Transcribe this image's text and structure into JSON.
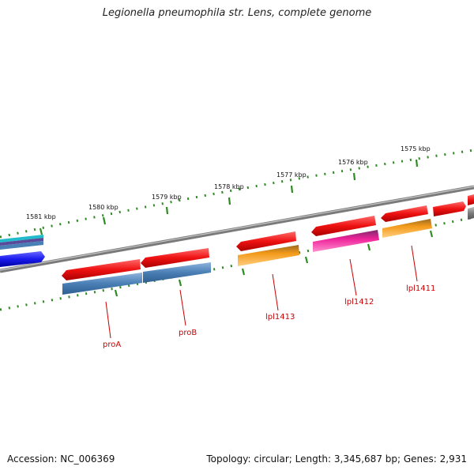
{
  "title": "Legionella pneumophila str. Lens, complete genome",
  "accession": "Accession: NC_006369",
  "stats": "Topology: circular; Length: 3,345,687 bp; Genes: 2,931",
  "colors": {
    "backbone": "#7a7a7a",
    "tick": "#2e8b22",
    "cds_forward": "#ee1111",
    "label": "#cc0000",
    "steelblue": "#4a7fb5",
    "orange": "#f39a1a",
    "magenta": "#ee2299",
    "blue": "#1a1aee",
    "cyan": "#22bbcc",
    "purple": "#5a4a9a",
    "gray": "#8a8a8a"
  },
  "kbp_labels": [
    "1581 kbp",
    "1580 kbp",
    "1579 kbp",
    "1578 kbp",
    "1577 kbp",
    "1576 kbp",
    "1575 kbp"
  ],
  "gene_labels": [
    "proA",
    "proB",
    "lpl1413",
    "lpl1412",
    "lpl1411"
  ]
}
